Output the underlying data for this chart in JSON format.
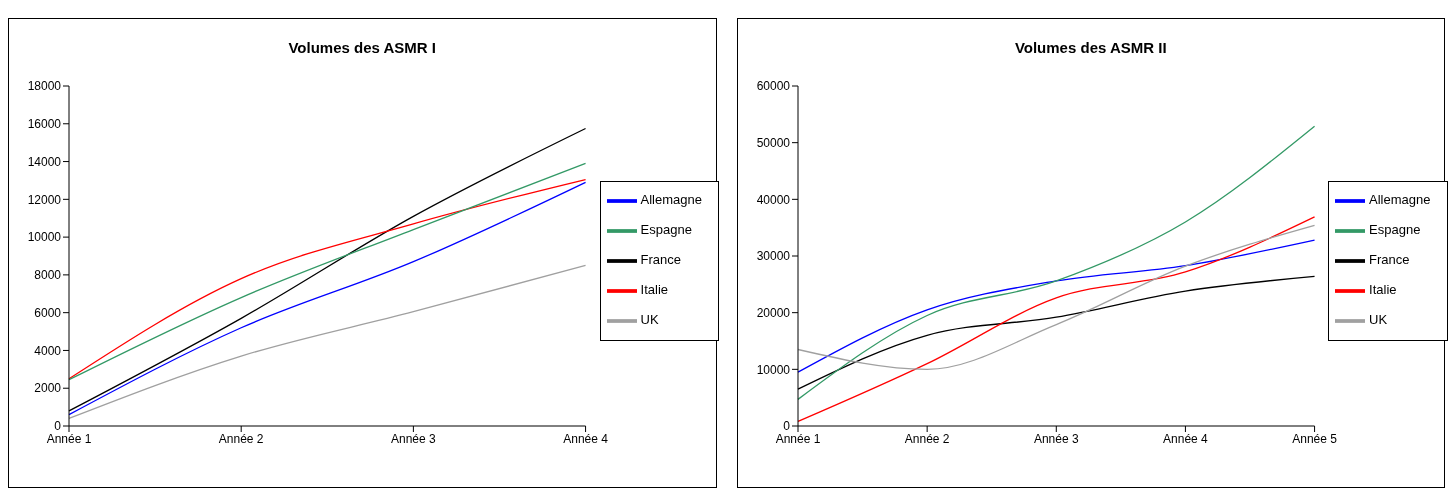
{
  "chart_data": [
    {
      "type": "line",
      "title": "Volumes des ASMR I",
      "categories": [
        "Année 1",
        "Année 2",
        "Année 3",
        "Année 4"
      ],
      "ylim": [
        0,
        18000
      ],
      "yticks": [
        0,
        2000,
        4000,
        6000,
        8000,
        10000,
        12000,
        14000,
        16000,
        18000
      ],
      "grid": false,
      "legend": "right",
      "marker": "none",
      "line_style": "solid",
      "series": [
        {
          "name": "France",
          "color": "#000000",
          "values": [
            800,
            5700,
            11100,
            15750
          ]
        },
        {
          "name": "Allemagne",
          "color": "#0000ff",
          "values": [
            600,
            5200,
            8700,
            12900
          ]
        },
        {
          "name": "Italie",
          "color": "#ff0000",
          "values": [
            2500,
            7800,
            10700,
            13050
          ]
        },
        {
          "name": "Espagne",
          "color": "#339966",
          "values": [
            2450,
            6800,
            10400,
            13900
          ]
        },
        {
          "name": "UK",
          "color": "#a0a0a0",
          "values": [
            400,
            3700,
            6050,
            8500
          ]
        }
      ]
    },
    {
      "type": "line",
      "title": "Volumes des ASMR II",
      "categories": [
        "Année 1",
        "Année 2",
        "Année 3",
        "Année 4",
        "Année 5"
      ],
      "ylim": [
        0,
        60000
      ],
      "yticks": [
        0,
        10000,
        20000,
        30000,
        40000,
        50000,
        60000
      ],
      "grid": false,
      "legend": "right",
      "marker": "none",
      "line_style": "solid",
      "series": [
        {
          "name": "France",
          "color": "#000000",
          "values": [
            6500,
            16000,
            19200,
            23800,
            26400
          ]
        },
        {
          "name": "Allemagne",
          "color": "#0000ff",
          "values": [
            9500,
            20500,
            25600,
            28300,
            32800
          ]
        },
        {
          "name": "Italie",
          "color": "#ff0000",
          "values": [
            800,
            11000,
            22600,
            27200,
            36900
          ]
        },
        {
          "name": "Espagne",
          "color": "#339966",
          "values": [
            4700,
            19500,
            25600,
            36000,
            52900
          ]
        },
        {
          "name": "UK",
          "color": "#a0a0a0",
          "values": [
            13500,
            10000,
            17900,
            28200,
            35400
          ]
        }
      ]
    }
  ]
}
